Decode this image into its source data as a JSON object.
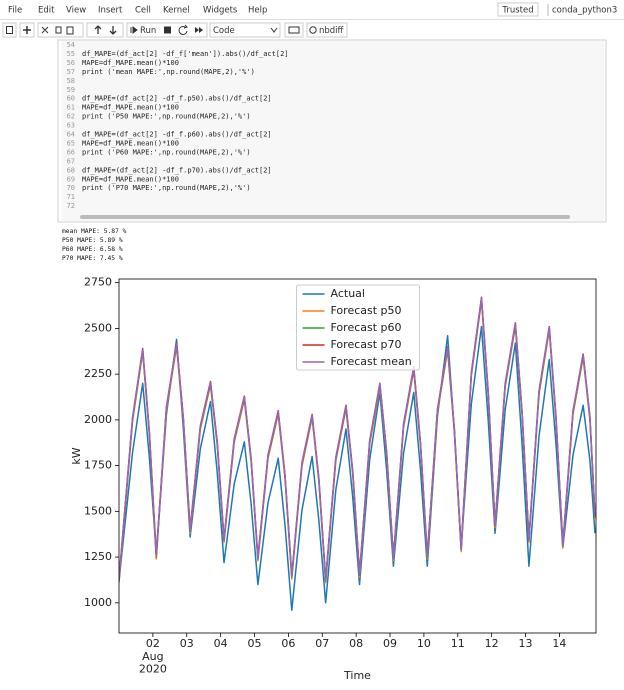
{
  "menu": {
    "items": [
      "File",
      "Edit",
      "View",
      "Insert",
      "Cell",
      "Kernel",
      "Widgets",
      "Help"
    ],
    "trusted": "Trusted",
    "kernel": "conda_python3"
  },
  "toolbar": {
    "run": "Run",
    "cell_type": "Code",
    "nbdiff": "nbdiff"
  },
  "code": {
    "lines": [
      {
        "n": 54
      },
      {
        "n": 55,
        "text": "df_MAPE=(df_act[2] -df_f['mean']).abs()/df_act[2]"
      },
      {
        "n": 56,
        "text": "MAPE=df_MAPE.mean()*100"
      },
      {
        "n": 57,
        "text": "print ('mean MAPE:',np.round(MAPE,2),'%')"
      },
      {
        "n": 58
      },
      {
        "n": 59
      },
      {
        "n": 60,
        "text": "df_MAPE=(df_act[2] -df_f.p50).abs()/df_act[2]"
      },
      {
        "n": 61,
        "text": "MAPE=df_MAPE.mean()*100"
      },
      {
        "n": 62,
        "text": "print ('P50 MAPE:',np.round(MAPE,2),'%')"
      },
      {
        "n": 63
      },
      {
        "n": 64,
        "text": "df_MAPE=(df_act[2] -df_f.p60).abs()/df_act[2]"
      },
      {
        "n": 65,
        "text": "MAPE=df_MAPE.mean()*100"
      },
      {
        "n": 66,
        "text": "print ('P60 MAPE:',np.round(MAPE,2),'%')"
      },
      {
        "n": 67
      },
      {
        "n": 68,
        "text": "df_MAPE=(df_act[2] -df_f.p70).abs()/df_act[2]"
      },
      {
        "n": 69,
        "text": "MAPE=df_MAPE.mean()*100"
      },
      {
        "n": 70,
        "text": "print ('P70 MAPE:',np.round(MAPE,2),'%')"
      },
      {
        "n": 71
      },
      {
        "n": 72
      }
    ]
  },
  "output": {
    "lines": [
      "mean MAPE: 5.87 %",
      "P50 MAPE: 5.89 %",
      "P60 MAPE: 6.58 %",
      "P70 MAPE: 7.45 %"
    ]
  },
  "chart_data": {
    "type": "line",
    "x_label": "Time",
    "y_label": "kW",
    "xlim": [
      1.0,
      15.08
    ],
    "xticks": [
      {
        "value": 2,
        "label": "02"
      },
      {
        "value": 3,
        "label": "03"
      },
      {
        "value": 4,
        "label": "04"
      },
      {
        "value": 5,
        "label": "05"
      },
      {
        "value": 6,
        "label": "06"
      },
      {
        "value": 7,
        "label": "07"
      },
      {
        "value": 8,
        "label": "08"
      },
      {
        "value": 9,
        "label": "09"
      },
      {
        "value": 10,
        "label": "10"
      },
      {
        "value": 11,
        "label": "11"
      },
      {
        "value": 12,
        "label": "12"
      },
      {
        "value": 13,
        "label": "13"
      },
      {
        "value": 14,
        "label": "14"
      }
    ],
    "xtick_secondary": [
      "Aug",
      "2020"
    ],
    "ylim": [
      835,
      2770
    ],
    "yticks": [
      1000,
      1250,
      1500,
      1750,
      2000,
      2250,
      2500,
      2750
    ],
    "legend": "upper center",
    "x": [
      1.0,
      1.4,
      1.7,
      1.9,
      2.1,
      2.4,
      2.7,
      2.9,
      3.1,
      3.4,
      3.7,
      3.9,
      4.1,
      4.4,
      4.7,
      4.9,
      5.1,
      5.4,
      5.7,
      5.9,
      6.1,
      6.4,
      6.7,
      6.9,
      7.1,
      7.4,
      7.7,
      7.9,
      8.1,
      8.4,
      8.7,
      8.9,
      9.1,
      9.4,
      9.7,
      9.9,
      10.1,
      10.4,
      10.7,
      10.9,
      11.1,
      11.4,
      11.7,
      11.9,
      12.1,
      12.4,
      12.7,
      12.9,
      13.1,
      13.4,
      13.7,
      13.9,
      14.1,
      14.4,
      14.7,
      14.9,
      15.05
    ],
    "series": [
      {
        "name": "Actual",
        "color": "#1f77b4",
        "values": [
          1120,
          1822,
          2200,
          1785,
          1270,
          2030,
          2440,
          1950,
          1360,
          1841,
          2100,
          1710,
          1220,
          1649,
          1880,
          1540,
          1100,
          1549,
          1790,
          1425,
          960,
          1506,
          1800,
          1450,
          1000,
          1618,
          1950,
          1575,
          1100,
          1783,
          2150,
          1725,
          1200,
          1818,
          2150,
          1725,
          1200,
          2019,
          2460,
          1930,
          1300,
          2087,
          2510,
          1995,
          1380,
          2056,
          2420,
          1860,
          1200,
          1915,
          2330,
          1865,
          1300,
          1807,
          2080,
          1780,
          1380
        ]
      },
      {
        "name": "Forecast p50",
        "color": "#ff7f0e",
        "values": [
          1110,
          1992,
          2370,
          1905,
          1240,
          2052,
          2400,
          1990,
          1380,
          1947,
          2190,
          1860,
          1330,
          1876,
          2110,
          1770,
          1230,
          1790,
          2030,
          1680,
          1130,
          1746,
          2010,
          1660,
          1110,
          1775,
          2060,
          1700,
          1140,
          1868,
          2180,
          1805,
          1230,
          1958,
          2270,
          1855,
          1240,
          2038,
          2380,
          1930,
          1280,
          2239,
          2650,
          2130,
          1410,
          2180,
          2510,
          2020,
          1330,
          2142,
          2490,
          1995,
          1300,
          2028,
          2340,
          2000,
          1460
        ]
      },
      {
        "name": "Forecast p60",
        "color": "#2ca02c",
        "values": [
          1120,
          2002,
          2380,
          1915,
          1250,
          2062,
          2410,
          2000,
          1390,
          1957,
          2200,
          1870,
          1340,
          1886,
          2120,
          1780,
          1240,
          1800,
          2040,
          1690,
          1140,
          1756,
          2020,
          1670,
          1120,
          1785,
          2070,
          1710,
          1150,
          1878,
          2190,
          1815,
          1240,
          1968,
          2280,
          1865,
          1250,
          2048,
          2390,
          1940,
          1290,
          2249,
          2660,
          2140,
          1420,
          2190,
          2520,
          2030,
          1340,
          2152,
          2500,
          2005,
          1310,
          2038,
          2350,
          2010,
          1470
        ]
      },
      {
        "name": "Forecast p70",
        "color": "#d62728",
        "values": [
          1130,
          2012,
          2390,
          1925,
          1260,
          2072,
          2420,
          2010,
          1400,
          1967,
          2210,
          1880,
          1350,
          1896,
          2130,
          1790,
          1250,
          1810,
          2050,
          1700,
          1150,
          1766,
          2030,
          1680,
          1130,
          1795,
          2080,
          1720,
          1160,
          1888,
          2200,
          1825,
          1250,
          1978,
          2290,
          1875,
          1260,
          2058,
          2400,
          1950,
          1300,
          2259,
          2670,
          2150,
          1430,
          2200,
          2530,
          2040,
          1350,
          2162,
          2510,
          2015,
          1320,
          2048,
          2360,
          2020,
          1480
        ]
      },
      {
        "name": "Forecast mean",
        "color": "#9467bd",
        "values": [
          1125,
          2007,
          2385,
          1920,
          1255,
          2067,
          2415,
          2005,
          1395,
          1962,
          2205,
          1875,
          1345,
          1891,
          2125,
          1785,
          1245,
          1805,
          2045,
          1695,
          1145,
          1761,
          2025,
          1675,
          1125,
          1790,
          2075,
          1715,
          1155,
          1883,
          2195,
          1820,
          1245,
          1973,
          2285,
          1870,
          1255,
          2053,
          2395,
          1945,
          1295,
          2254,
          2665,
          2145,
          1425,
          2195,
          2525,
          2035,
          1345,
          2157,
          2505,
          2010,
          1315,
          2043,
          2355,
          2015,
          1475
        ]
      }
    ]
  }
}
